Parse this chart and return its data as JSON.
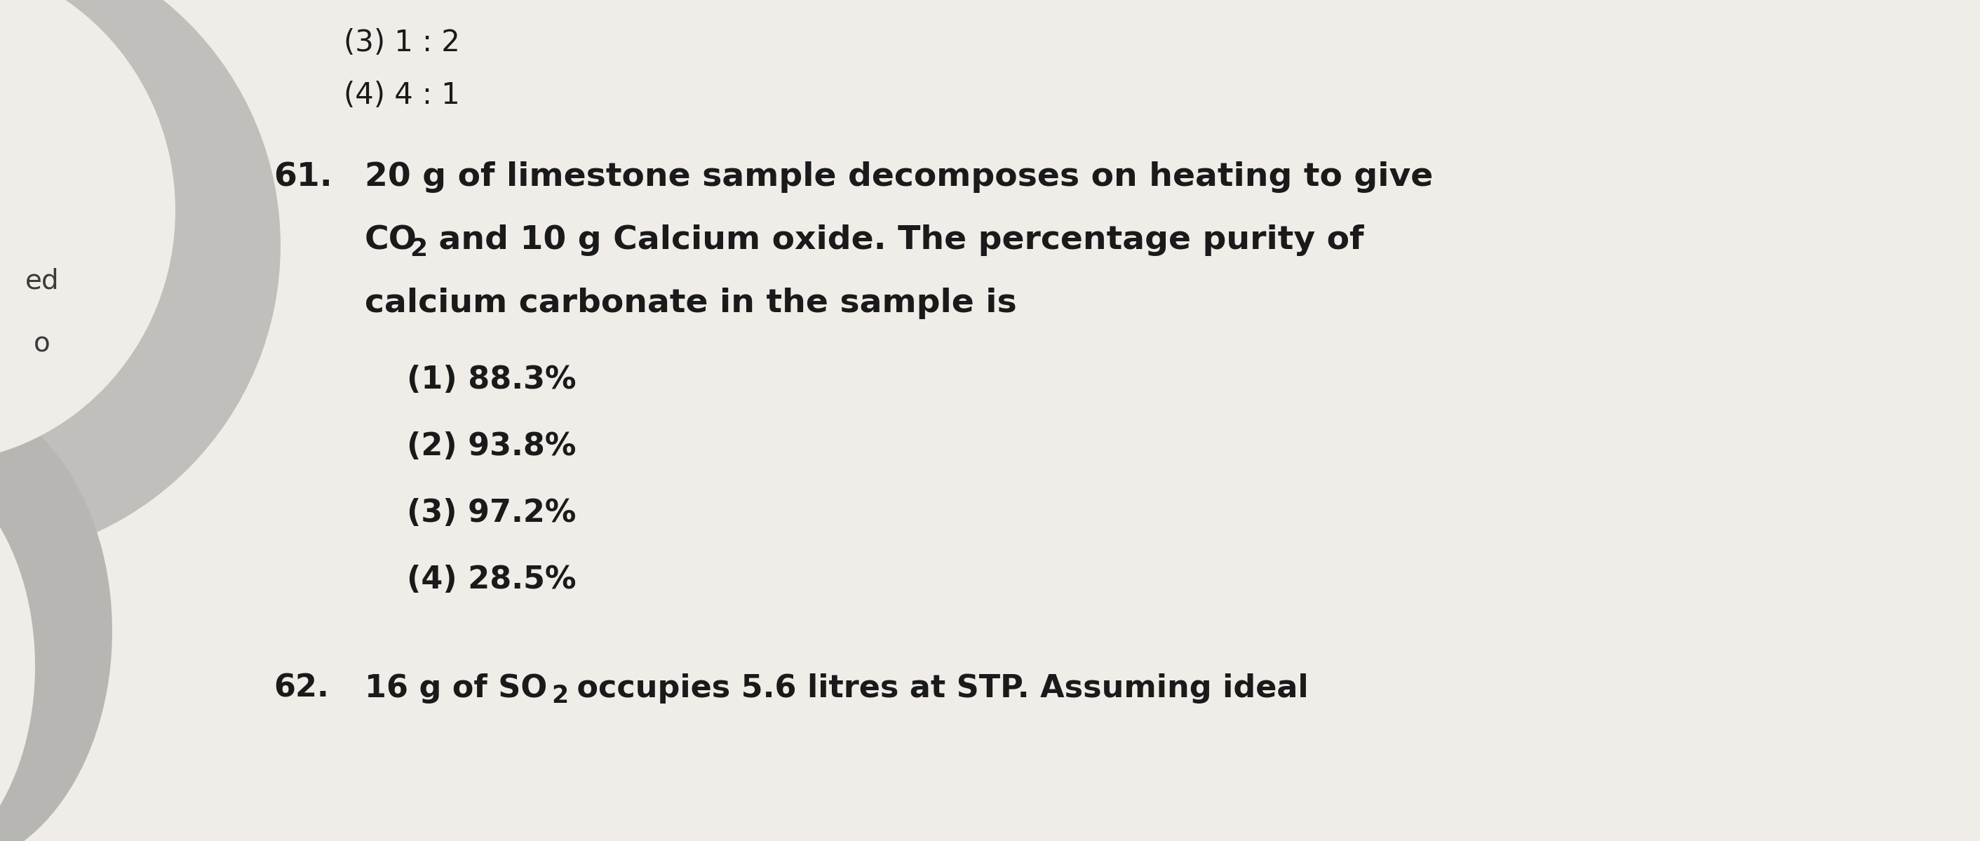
{
  "page_bg": "#f0ede8",
  "left_ellipse_color": "#b0b0b0",
  "left_ellipse2_color": "#c8c8c8",
  "text_color": "#1a1a1a",
  "prev_option3": "(3) 1 : 2",
  "prev_option4": "(4) 4 : 1",
  "left_label1": "ed",
  "left_label2": "o",
  "q_number": "61.",
  "options": [
    "(1) 88.3%",
    "(2) 93.8%",
    "(3) 97.2%",
    "(4) 28.5%"
  ],
  "next_q_num": "62.",
  "next_q_line": "16 g of SO₂ occupies 5.6 litres at STP. Assuming ideal",
  "font_size_prev": 30,
  "font_size_q": 34,
  "font_size_opts": 32,
  "font_size_next": 32,
  "font_size_labels": 28
}
